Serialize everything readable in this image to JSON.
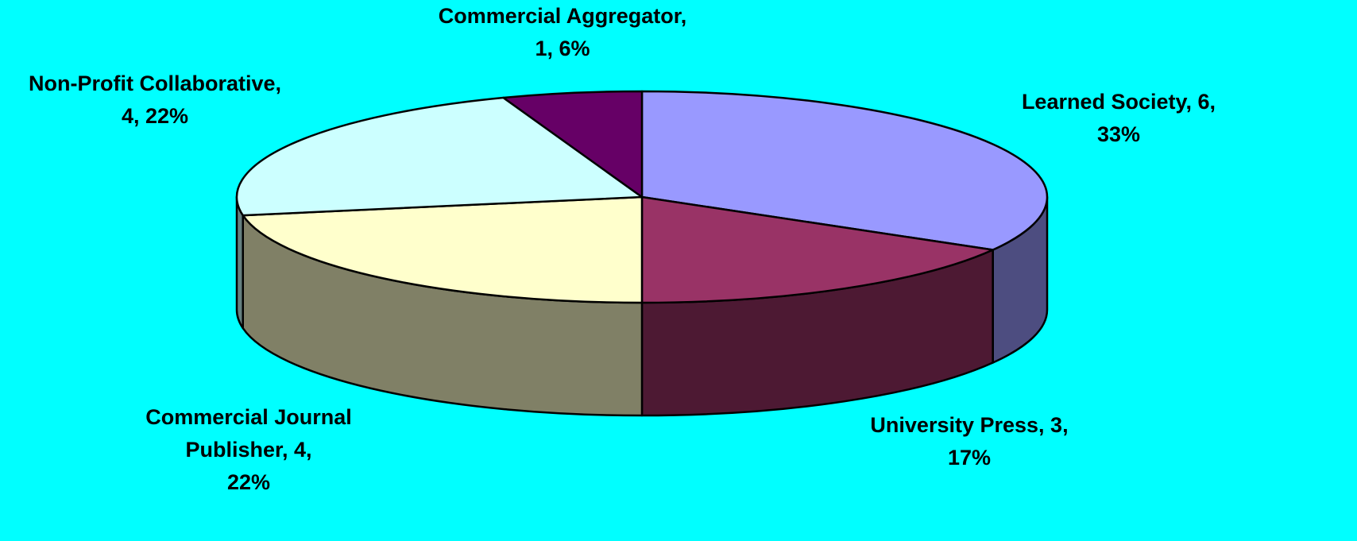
{
  "chart_data": {
    "type": "pie3d",
    "values": [
      6,
      3,
      4,
      4,
      1
    ],
    "labels": [
      [
        "Learned Society, 6,",
        "33%"
      ],
      [
        "University Press, 3,",
        "17%"
      ],
      [
        "Commercial Journal",
        "Publisher, 4,",
        "22%"
      ],
      [
        "Non-Profit Collaborative,",
        "4, 22%"
      ],
      [
        "Commercial Aggregator,",
        "1, 6%"
      ]
    ],
    "colors": [
      "#9999ff",
      "#993366",
      "#ffffcc",
      "#ccffff",
      "#660066"
    ],
    "side_colors": [
      "#4d4d80",
      "#4d1933",
      "#808066",
      "#668080",
      "#330033"
    ]
  }
}
